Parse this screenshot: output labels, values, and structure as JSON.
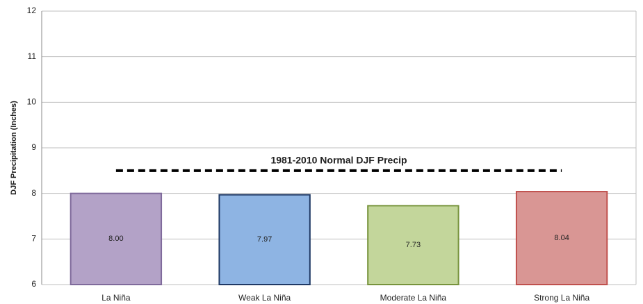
{
  "chart_data": {
    "type": "bar",
    "y_label": "DJF Precipitation (Inches)",
    "categories": [
      "La Niña",
      "Weak La Niña",
      "Moderate La Niña",
      "Strong La Niña"
    ],
    "values": [
      8.0,
      7.97,
      7.73,
      8.04
    ],
    "value_labels": [
      "8.00",
      "7.97",
      "7.73",
      "8.04"
    ],
    "colors": [
      "#b3a2c7",
      "#8eb4e3",
      "#c3d69b",
      "#d99694"
    ],
    "edge_colors": [
      "#7f6a9b",
      "#1f3864",
      "#77933c",
      "#c0504d"
    ],
    "reference_line": {
      "value": 8.5,
      "label": "1981-2010 Normal DJF Precip"
    },
    "ylim": [
      6,
      12
    ],
    "yticks": [
      6,
      7,
      8,
      9,
      10,
      11,
      12
    ],
    "grid": true
  }
}
